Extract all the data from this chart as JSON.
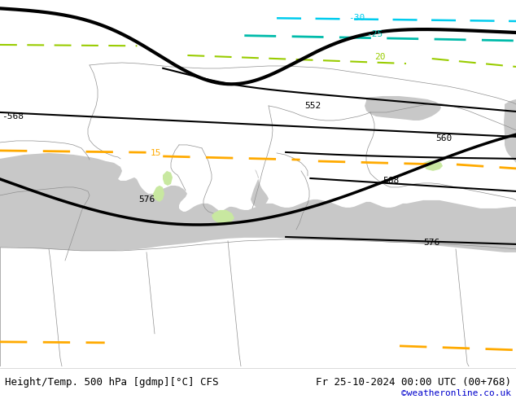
{
  "title_left": "Height/Temp. 500 hPa [gdmp][°C] CFS",
  "title_right": "Fr 25-10-2024 00:00 UTC (00+768)",
  "credit": "©weatheronline.co.uk",
  "bg_color": "#c8e8a0",
  "land_color": "#c8e8a0",
  "sea_color": "#c8c8c8",
  "fig_width": 6.34,
  "fig_height": 4.9,
  "dpi": 100,
  "title_fontsize": 9,
  "credit_fontsize": 8,
  "credit_color": "#0000cc",
  "geop_color": "#000000",
  "temp_30_color": "#00ccee",
  "temp_25_color": "#00bbaa",
  "temp_20_color": "#99cc00",
  "temp_15_color": "#ffaa00"
}
